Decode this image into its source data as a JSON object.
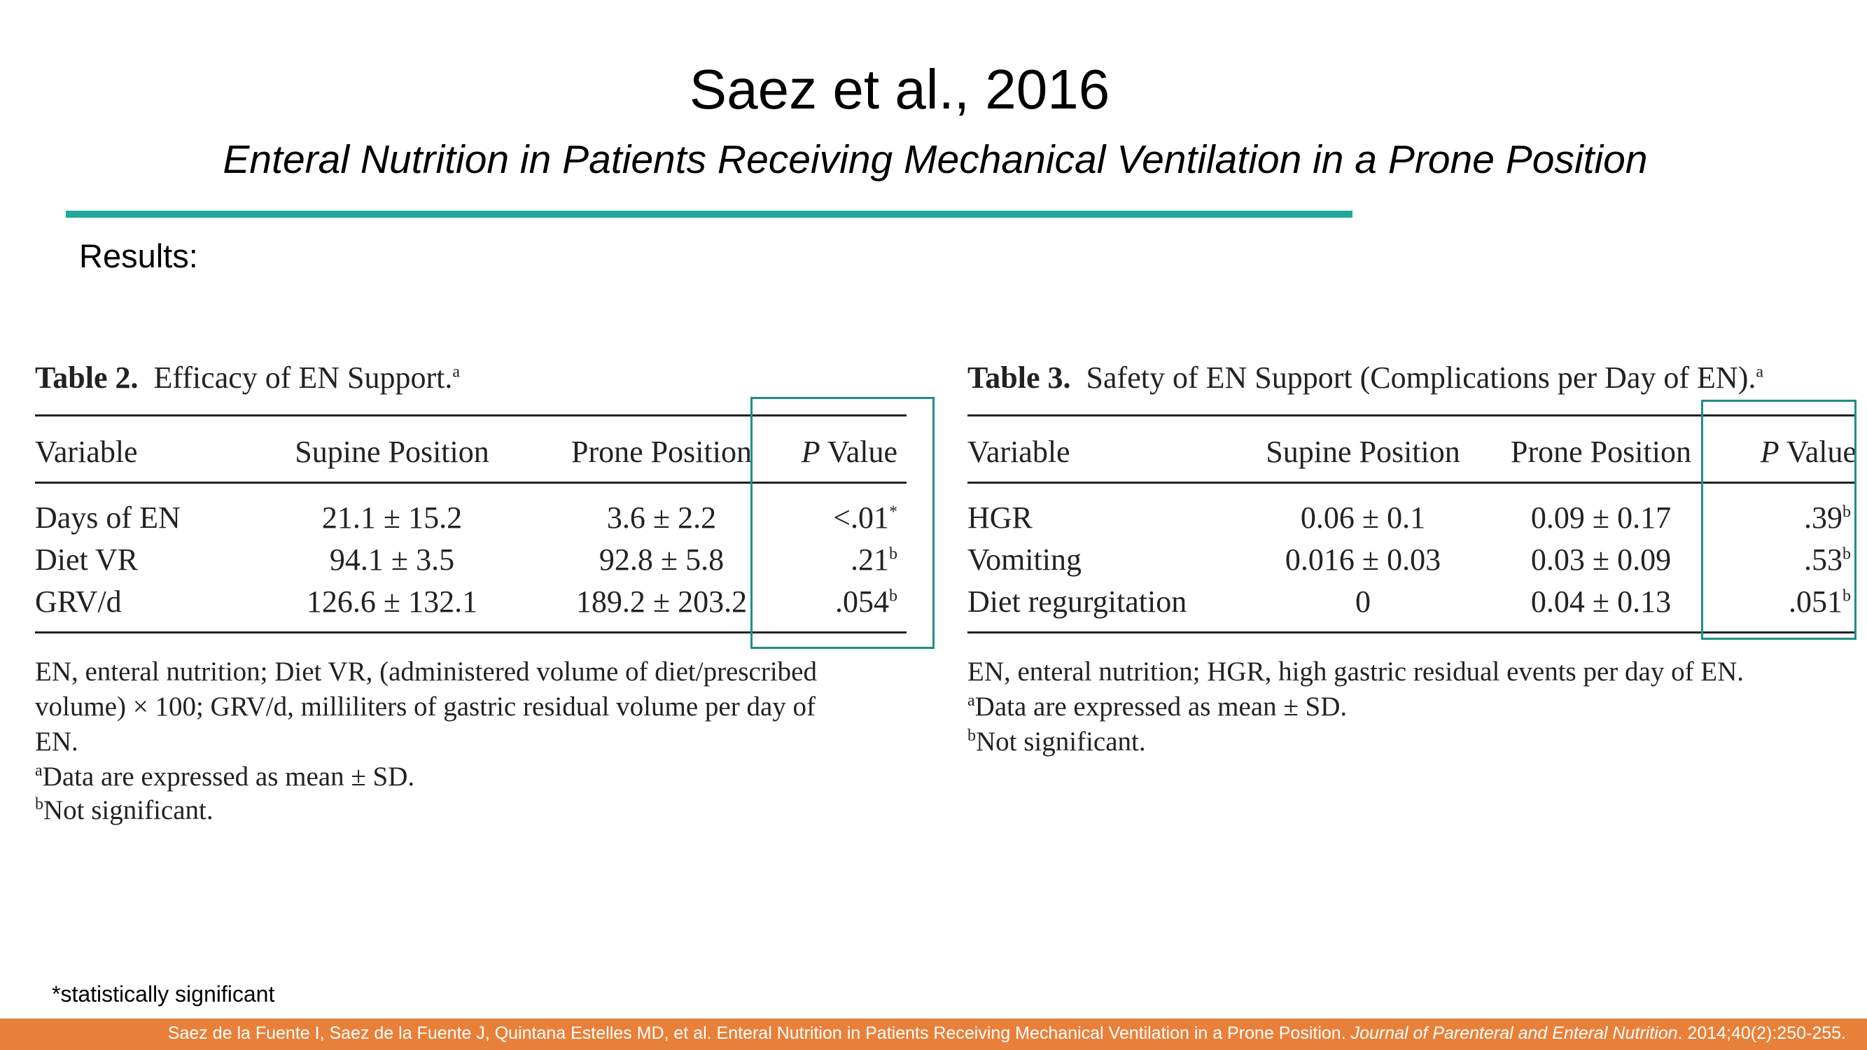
{
  "header": {
    "title": "Saez et al., 2016",
    "subtitle": "Enteral Nutrition in Patients Receiving Mechanical Ventilation in a Prone Position",
    "section_label": "Results:"
  },
  "table2": {
    "caption_bold": "Table 2.",
    "caption": "Efficacy of EN Support.",
    "caption_sup": "a",
    "columns": [
      "Variable",
      "Supine Position",
      "Prone Position",
      "P Value"
    ],
    "rows": [
      {
        "variable": "Days of EN",
        "supine": "21.1 ± 15.2",
        "prone": "3.6 ± 2.2",
        "p": "<.01",
        "p_sup": "*"
      },
      {
        "variable": "Diet VR",
        "supine": "94.1 ± 3.5",
        "prone": "92.8 ± 5.8",
        "p": ".21",
        "p_sup": "b"
      },
      {
        "variable": "GRV/d",
        "supine": "126.6 ± 132.1",
        "prone": "189.2 ± 203.2",
        "p": ".054",
        "p_sup": "b"
      }
    ],
    "notes": [
      "EN, enteral nutrition; Diet VR, (administered volume of diet/prescribed",
      "volume) × 100; GRV/d, milliliters of gastric residual volume per day of",
      "EN."
    ],
    "footnote_a_sup": "a",
    "footnote_a": "Data are expressed as mean ± SD.",
    "footnote_b_sup": "b",
    "footnote_b": "Not significant."
  },
  "table3": {
    "caption_bold": "Table 3.",
    "caption": "Safety of EN Support (Complications per Day of EN).",
    "caption_sup": "a",
    "columns": [
      "Variable",
      "Supine Position",
      "Prone Position",
      "P Value"
    ],
    "rows": [
      {
        "variable": "HGR",
        "supine": "0.06 ± 0.1",
        "prone": "0.09 ± 0.17",
        "p": ".39",
        "p_sup": "b"
      },
      {
        "variable": "Vomiting",
        "supine": "0.016 ± 0.03",
        "prone": "0.03 ± 0.09",
        "p": ".53",
        "p_sup": "b"
      },
      {
        "variable": "Diet regurgitation",
        "supine": "0",
        "prone": "0.04 ± 0.13",
        "p": ".051",
        "p_sup": "b"
      }
    ],
    "notes": [
      "EN, enteral nutrition; HGR, high gastric residual events per day of EN."
    ],
    "footnote_a_sup": "a",
    "footnote_a": "Data are expressed as mean ± SD.",
    "footnote_b_sup": "b",
    "footnote_b": "Not significant."
  },
  "significance_note": "*statistically significant",
  "footer": {
    "citation_main": "Saez de la Fuente I, Saez de la Fuente J, Quintana Estelles MD, et al. Enteral Nutrition in Patients Receiving Mechanical Ventilation in a Prone Position.",
    "journal": "Journal of Parenteral and Enteral Nutrition",
    "citation_end": ". 2014;40(2):250-255."
  },
  "colors": {
    "accent_rule": "#1fa89b",
    "highlight_box": "#1f8f86",
    "footer_bar": "#e8803a"
  }
}
